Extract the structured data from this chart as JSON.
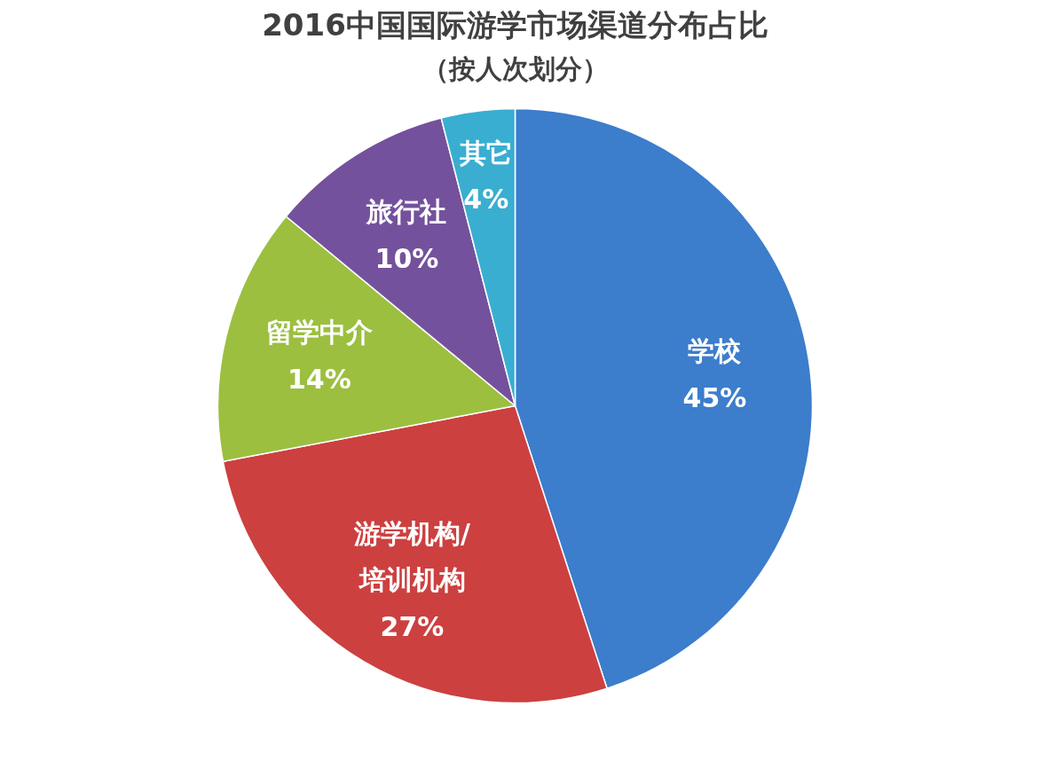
{
  "chart_data": {
    "type": "pie",
    "title": "2016中国国际游学市场渠道分布占比",
    "subtitle": "（按人次划分）",
    "categories": [
      "学校",
      "游学机构/\n培训机构",
      "留学中介",
      "旅行社",
      "其它"
    ],
    "values": [
      45,
      27,
      14,
      10,
      4
    ],
    "value_labels": [
      "45%",
      "27%",
      "14%",
      "10%",
      "4%"
    ],
    "colors": [
      "#3c7dcc",
      "#cc4040",
      "#9cbf40",
      "#74519c",
      "#3aaed0"
    ]
  }
}
